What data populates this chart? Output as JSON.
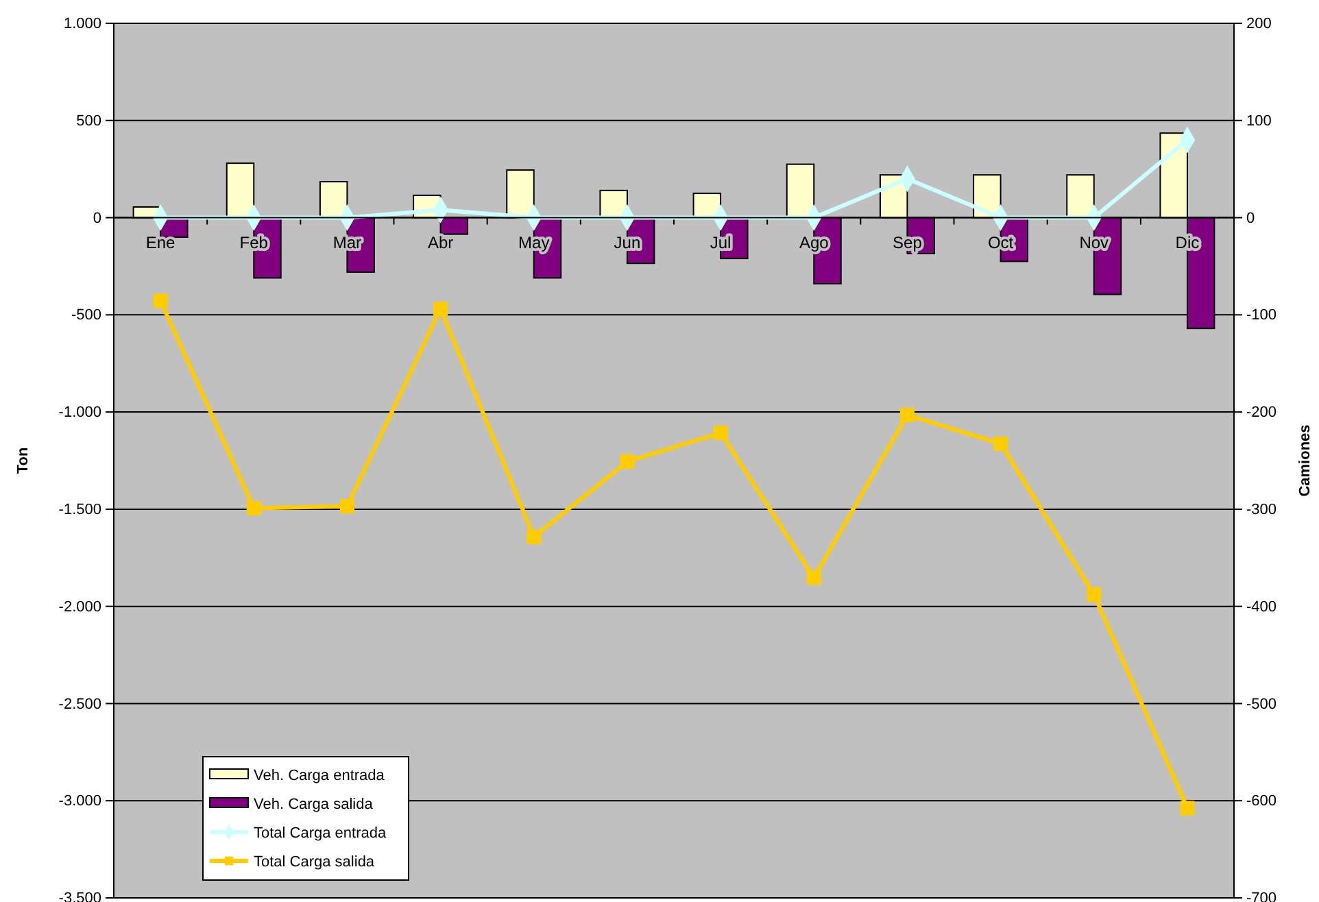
{
  "chart_data": {
    "type": "bar",
    "categories": [
      "Ene",
      "Feb",
      "Mar",
      "Abr",
      "May",
      "Jun",
      "Jul",
      "Ago",
      "Sep",
      "Oct",
      "Nov",
      "Dic"
    ],
    "ylabel": "Ton",
    "y2label": "Camiones",
    "ylim": [
      -3500,
      1000
    ],
    "yticks": [
      {
        "value": -3500,
        "label": "-3.500"
      },
      {
        "value": -3000,
        "label": "-3.000"
      },
      {
        "value": -2500,
        "label": "-2.500"
      },
      {
        "value": -2000,
        "label": "-2.000"
      },
      {
        "value": -1500,
        "label": "-1.500"
      },
      {
        "value": -1000,
        "label": "-1.000"
      },
      -500,
      0,
      500,
      {
        "value": 1000,
        "label": "1.000"
      }
    ],
    "y2lim": [
      -700,
      200
    ],
    "y2ticks": [
      -700,
      -600,
      -500,
      -400,
      -300,
      -200,
      -100,
      0,
      100,
      200
    ],
    "grid": "y",
    "legend": "bottom left",
    "series": [
      {
        "name": "Veh. Carga entrada",
        "axis": "y2",
        "color": "#ffffcc",
        "values": [
          11,
          56,
          37,
          23,
          49,
          28,
          25,
          55,
          44,
          44,
          44,
          87
        ]
      },
      {
        "name": "Veh. Carga salida",
        "axis": "y2",
        "color": "#800080",
        "values": [
          -20,
          -62,
          -56,
          -17,
          -62,
          -47,
          -42,
          -68,
          -37,
          -45,
          -79,
          -114
        ]
      },
      {
        "name": "Total Carga entrada",
        "type": "line",
        "marker": "diamond",
        "color": "#ccffff",
        "values": [
          0,
          0,
          0,
          40,
          0,
          0,
          0,
          0,
          200,
          0,
          0,
          400
        ]
      },
      {
        "name": "Total Carga salida",
        "type": "line",
        "marker": "square",
        "color": "#ffcc00",
        "values": [
          -428,
          -1495,
          -1485,
          -470,
          -1643,
          -1255,
          -1107,
          -1852,
          -1015,
          -1163,
          -1939,
          -3038
        ]
      }
    ]
  }
}
